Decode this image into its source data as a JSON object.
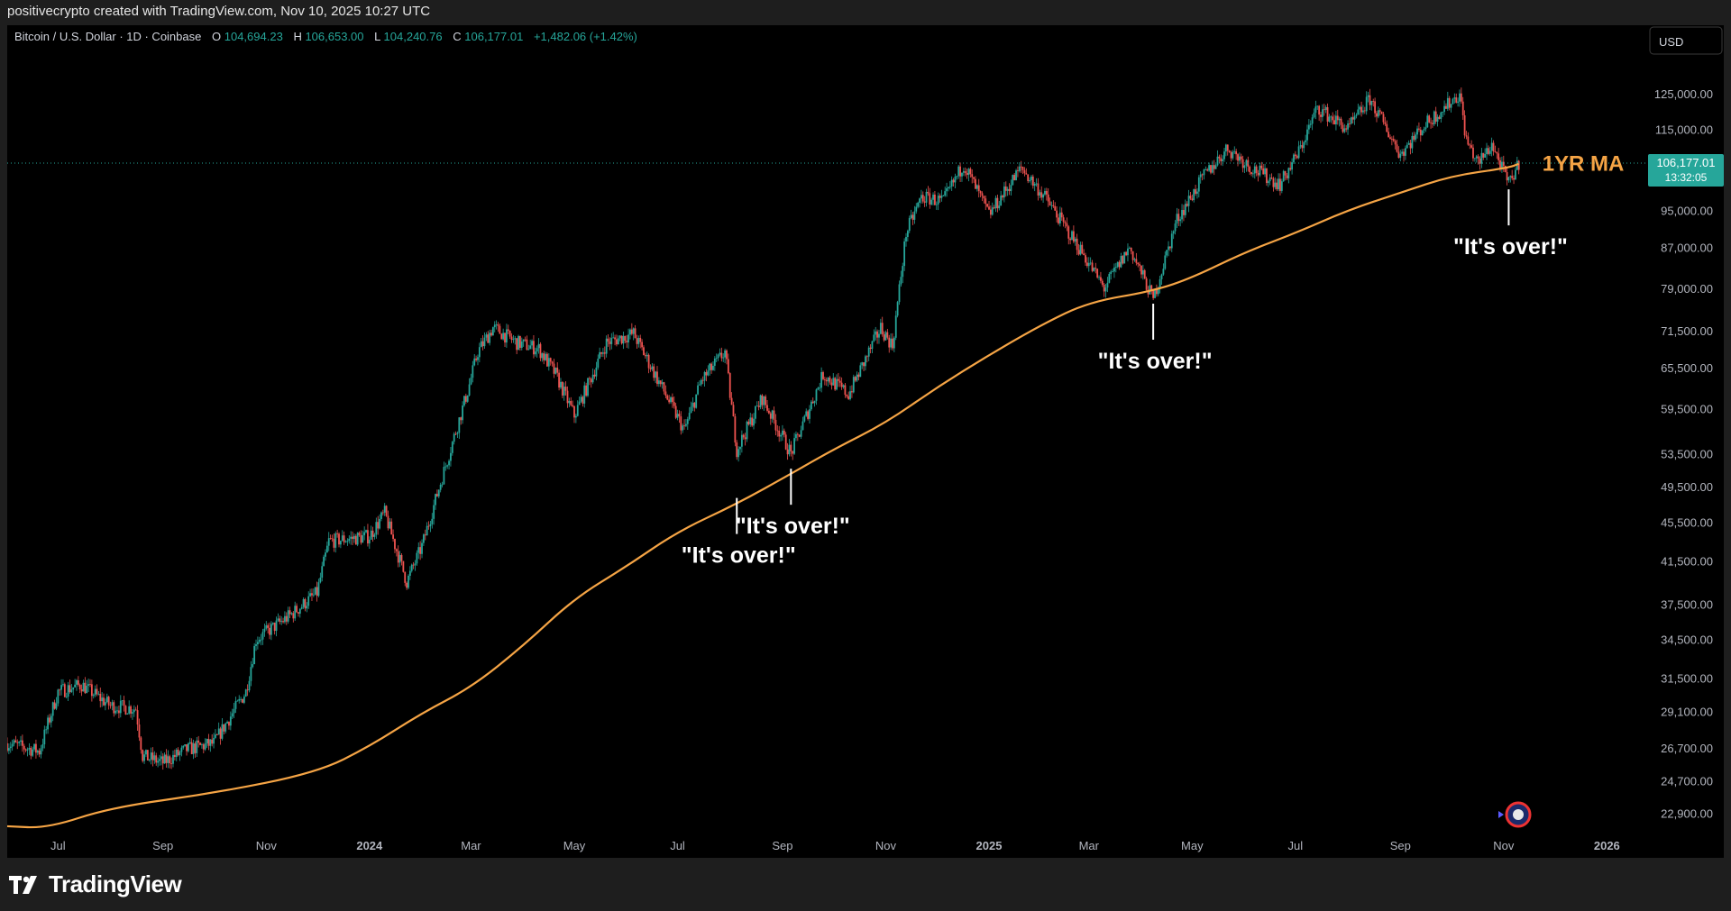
{
  "header": {
    "attribution": "positivecrypto created with TradingView.com, Nov 10, 2025 10:27 UTC"
  },
  "legend": {
    "symbol": "Bitcoin / U.S. Dollar · 1D · Coinbase",
    "open_label": "O",
    "open": "104,694.23",
    "high_label": "H",
    "high": "106,653.00",
    "low_label": "L",
    "low": "104,240.76",
    "close_label": "C",
    "close": "106,177.01",
    "change": "+1,482.06 (+1.42%)"
  },
  "currency_button": "USD",
  "price_badge": {
    "price": "106,177.01",
    "countdown": "13:32:05"
  },
  "footer": {
    "brand": "TradingView"
  },
  "colors": {
    "background": "#000000",
    "ma_line": "#f5a445",
    "up_candle": "#26a69a",
    "down_candle": "#ef5350",
    "badge": "#26a69a",
    "label_text": "#ffffff"
  },
  "chart_data": {
    "type": "line",
    "scale": "log",
    "ylim": [
      21500,
      135000
    ],
    "y_ticks": [
      "125,000.00",
      "115,000.00",
      "95,000.00",
      "87,000.00",
      "79,000.00",
      "71,500.00",
      "65,500.00",
      "59,500.00",
      "53,500.00",
      "49,500.00",
      "45,500.00",
      "41,500.00",
      "37,500.00",
      "34,500.00",
      "31,500.00",
      "29,100.00",
      "26,700.00",
      "24,700.00",
      "22,900.00"
    ],
    "x_ticks": [
      "Jul",
      "Sep",
      "Nov",
      "2024",
      "Mar",
      "May",
      "Jul",
      "Sep",
      "Nov",
      "2025",
      "Mar",
      "May",
      "Jul",
      "Sep",
      "Nov",
      "2026"
    ],
    "x_tick_months": [
      "2023-07-01",
      "2023-09-01",
      "2023-11-01",
      "2024-01-01",
      "2024-03-01",
      "2024-05-01",
      "2024-07-01",
      "2024-09-01",
      "2024-11-01",
      "2025-01-01",
      "2025-03-01",
      "2025-05-01",
      "2025-07-01",
      "2025-09-01",
      "2025-11-01",
      "2026-01-01"
    ],
    "xlim": [
      "2023-06-01",
      "2026-01-20"
    ],
    "series": [
      {
        "kind": "candle-price",
        "dates": [
          "2023-06-01",
          "2023-06-20",
          "2023-07-01",
          "2023-07-15",
          "2023-08-01",
          "2023-08-16",
          "2023-08-20",
          "2023-09-01",
          "2023-09-15",
          "2023-10-01",
          "2023-10-20",
          "2023-10-26",
          "2023-11-15",
          "2023-12-01",
          "2023-12-08",
          "2024-01-01",
          "2024-01-10",
          "2024-01-23",
          "2024-02-01",
          "2024-02-15",
          "2024-02-28",
          "2024-03-05",
          "2024-03-14",
          "2024-03-28",
          "2024-04-10",
          "2024-04-20",
          "2024-05-01",
          "2024-05-20",
          "2024-06-05",
          "2024-06-25",
          "2024-07-05",
          "2024-07-15",
          "2024-07-29",
          "2024-08-05",
          "2024-08-20",
          "2024-09-06",
          "2024-09-25",
          "2024-10-10",
          "2024-10-29",
          "2024-11-05",
          "2024-11-13",
          "2024-11-22",
          "2024-12-05",
          "2024-12-17",
          "2025-01-01",
          "2025-01-20",
          "2025-02-03",
          "2025-02-25",
          "2025-03-10",
          "2025-03-25",
          "2025-04-08",
          "2025-04-22",
          "2025-05-08",
          "2025-05-22",
          "2025-06-05",
          "2025-06-22",
          "2025-07-03",
          "2025-07-14",
          "2025-08-01",
          "2025-08-14",
          "2025-09-01",
          "2025-09-15",
          "2025-10-06",
          "2025-10-10",
          "2025-10-17",
          "2025-10-25",
          "2025-11-04",
          "2025-11-10"
        ],
        "values": [
          27000,
          26500,
          30500,
          31000,
          29500,
          29300,
          26200,
          25800,
          26600,
          27000,
          30500,
          34500,
          36500,
          38500,
          43500,
          44000,
          46500,
          39500,
          43000,
          52000,
          62000,
          68000,
          72000,
          69500,
          68500,
          64500,
          58500,
          69500,
          71000,
          61000,
          56500,
          63500,
          68000,
          54000,
          61000,
          53500,
          64500,
          61500,
          72000,
          69000,
          90000,
          98000,
          97000,
          106000,
          94000,
          105000,
          98000,
          86000,
          79000,
          87000,
          77000,
          93000,
          103000,
          110000,
          105000,
          101000,
          109000,
          121000,
          115000,
          123500,
          108500,
          116000,
          125000,
          112000,
          106000,
          111000,
          101000,
          106177
        ]
      },
      {
        "name": "1YR MA",
        "kind": "ma",
        "dates": [
          "2023-06-01",
          "2023-06-25",
          "2023-08-01",
          "2023-10-01",
          "2023-12-01",
          "2024-01-01",
          "2024-02-01",
          "2024-03-01",
          "2024-04-01",
          "2024-05-01",
          "2024-06-01",
          "2024-07-01",
          "2024-08-05",
          "2024-09-06",
          "2024-10-01",
          "2024-11-01",
          "2024-12-01",
          "2025-01-01",
          "2025-02-01",
          "2025-03-01",
          "2025-04-08",
          "2025-05-01",
          "2025-06-01",
          "2025-07-01",
          "2025-08-01",
          "2025-09-01",
          "2025-10-01",
          "2025-11-04",
          "2025-11-10"
        ],
        "values": [
          22200,
          22100,
          23200,
          24000,
          25200,
          26800,
          29000,
          30800,
          34000,
          38000,
          41000,
          44500,
          47500,
          51000,
          54000,
          57500,
          62500,
          67500,
          72500,
          76500,
          78500,
          81000,
          86000,
          90000,
          95000,
          99000,
          103000,
          105000,
          106000
        ]
      }
    ],
    "annotations": [
      {
        "text": "\"It's over!\"",
        "date": "2024-08-05",
        "value": 49000,
        "placement": "below"
      },
      {
        "text": "\"It's over!\"",
        "date": "2024-09-06",
        "value": 52500,
        "placement": "below"
      },
      {
        "text": "\"It's over!\"",
        "date": "2025-04-08",
        "value": 77500,
        "placement": "below"
      },
      {
        "text": "\"It's over!\"",
        "date": "2025-11-04",
        "value": 101500,
        "placement": "below"
      }
    ],
    "ma_label": "1YR MA"
  }
}
